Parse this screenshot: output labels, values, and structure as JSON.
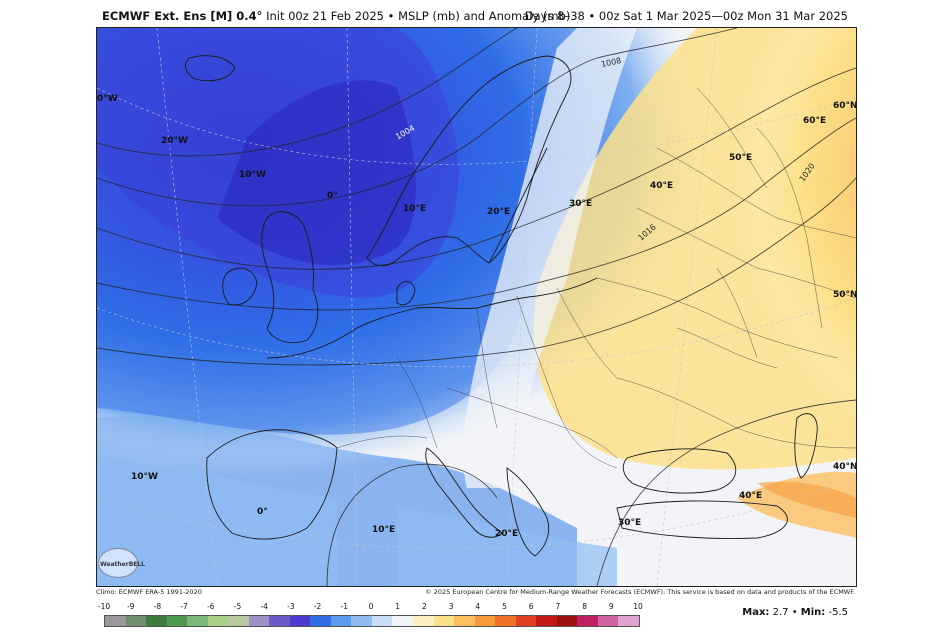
{
  "header": {
    "product": "ECMWF Ext. Ens [M] 0.4°",
    "init": "Init 00z 21 Feb 2025",
    "variable": "MSLP (mb) and Anomaly (mb)",
    "valid": "Days 8–38 • 00z Sat 1 Mar 2025—00z Mon 31 Mar 2025"
  },
  "map": {
    "graticule_labels": [
      "0°W",
      "20°W",
      "10°W",
      "0°",
      "10°E",
      "20°E",
      "30°E",
      "40°E",
      "50°E",
      "60°E",
      "60°N",
      "50°N",
      "40°N",
      "40°E",
      "30°E",
      "20°E",
      "10°E",
      "10°W",
      "0°"
    ],
    "isobars": [
      "1004",
      "1008",
      "1016",
      "1020"
    ]
  },
  "footer": {
    "climo": "Climo: ECMWF ERA-5 1991-2020",
    "copyright": "© 2025 European Centre for Medium-Range Weather Forecasts (ECMWF). This service is based on data and products of the ECMWF.",
    "logo": "WeatherBELL",
    "max_label": "Max:",
    "max_value": "2.7",
    "min_label": "Min:",
    "min_value": "-5.5"
  },
  "colorbar": {
    "ticks": [
      "-10",
      "-9",
      "-8",
      "-7",
      "-6",
      "-5",
      "-4",
      "-3",
      "-2",
      "-1",
      "0",
      "1",
      "2",
      "3",
      "4",
      "5",
      "6",
      "7",
      "8",
      "9",
      "10"
    ],
    "colors": [
      "#9a9a9a",
      "#6f8f6f",
      "#3f7a3f",
      "#4f9a4f",
      "#78b878",
      "#a8cf88",
      "#b8c8a0",
      "#a090c8",
      "#6a5ac8",
      "#4a3ad0",
      "#2f6ee8",
      "#5a9af0",
      "#8fbcf2",
      "#c8dcf6",
      "#f2f4f8",
      "#fdf0c0",
      "#fde08a",
      "#fbbf60",
      "#f79a3c",
      "#f0702a",
      "#e04020",
      "#c41818",
      "#a01010",
      "#c02060",
      "#d060a0",
      "#e0a0d0"
    ]
  },
  "colors": {
    "low_anomaly": "#3a2fc8",
    "high_anomaly": "#f7b24a",
    "neutral": "#f2f4f8"
  }
}
